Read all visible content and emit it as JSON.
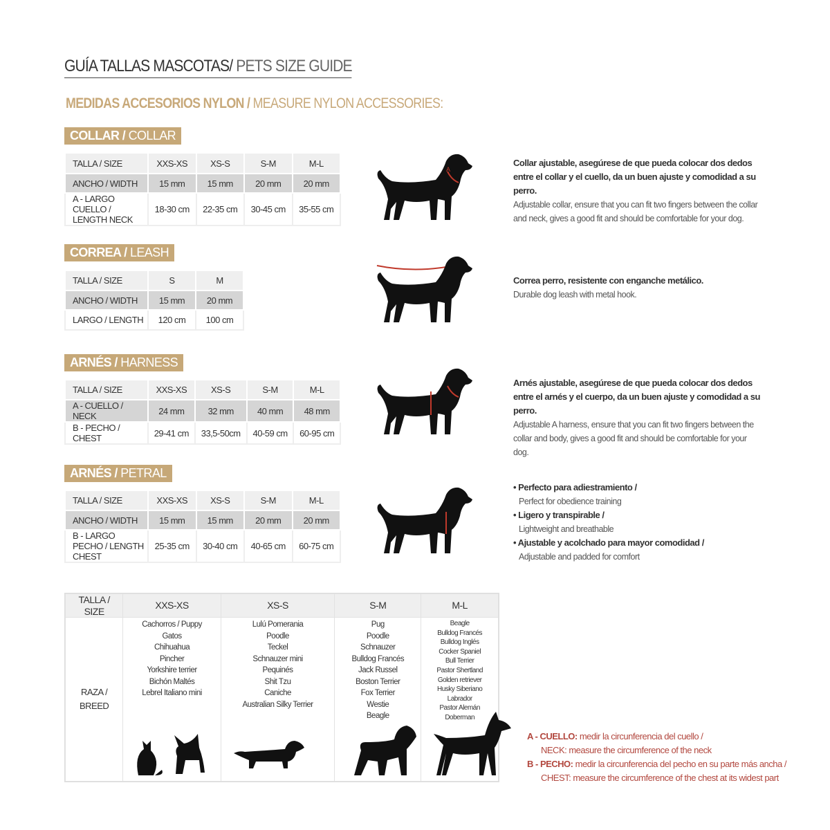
{
  "title": {
    "main": "GUÍA TALLAS MASCOTAS/",
    "sub": " PETS SIZE GUIDE"
  },
  "subtitle": {
    "main": "MEDIDAS ACCESORIOS NYLON /",
    "sub": " MEASURE NYLON ACCESSORIES:"
  },
  "colors": {
    "accent": "#c6a878",
    "red": "#b2473e",
    "dark": "#333333"
  },
  "collar": {
    "badge_es": "COLLAR /",
    "badge_en": " COLLAR",
    "rows": [
      [
        "TALLA / SIZE",
        "XXS-XS",
        "XS-S",
        "S-M",
        "M-L"
      ],
      [
        "ANCHO / WIDTH",
        "15 mm",
        "15 mm",
        "20 mm",
        "20 mm"
      ],
      [
        "A - LARGO CUELLO / LENGTH NECK",
        "18-30 cm",
        "22-35 cm",
        "30-45 cm",
        "35-55 cm"
      ]
    ],
    "desc_es": "Collar ajustable, asegúrese de que pueda colocar dos dedos entre el collar y el cuello, da un buen ajuste y comodidad a su perro.",
    "desc_en": "Adjustable collar, ensure that you can fit two fingers between the collar and neck, gives a good fit and should be comfortable for your dog."
  },
  "leash": {
    "badge_es": "CORREA /",
    "badge_en": " LEASH",
    "rows": [
      [
        "TALLA / SIZE",
        "S",
        "M"
      ],
      [
        "ANCHO / WIDTH",
        "15 mm",
        "20 mm"
      ],
      [
        "LARGO / LENGTH",
        "120 cm",
        "100 cm"
      ]
    ],
    "desc_es": "Correa perro, resistente con enganche metálico.",
    "desc_en": "Durable dog leash with metal hook."
  },
  "harness": {
    "badge_es": "ARNÉS /",
    "badge_en": " HARNESS",
    "rows": [
      [
        "TALLA / SIZE",
        "XXS-XS",
        "XS-S",
        "S-M",
        "M-L"
      ],
      [
        "A - CUELLO / NECK",
        "24 mm",
        "32 mm",
        "40 mm",
        "48 mm"
      ],
      [
        "B - PECHO / CHEST",
        "29-41 cm",
        "33,5-50cm",
        "40-59 cm",
        "60-95 cm"
      ]
    ],
    "desc_es": "Arnés ajustable, asegúrese de que pueda colocar dos dedos entre el arnés y el cuerpo, da un buen ajuste y comodidad a su perro.",
    "desc_en": "Adjustable A harness, ensure that you can fit two fingers between the collar and body, gives a good fit and should be comfortable for your dog."
  },
  "petral": {
    "badge_es": "ARNÉS /",
    "badge_en": " PETRAL",
    "rows": [
      [
        "TALLA / SIZE",
        "XXS-XS",
        "XS-S",
        "S-M",
        "M-L"
      ],
      [
        "ANCHO / WIDTH",
        "15 mm",
        "15 mm",
        "20 mm",
        "20 mm"
      ],
      [
        "B - LARGO PECHO / LENGTH CHEST",
        "25-35 cm",
        "30-40 cm",
        "40-65 cm",
        "60-75 cm"
      ]
    ],
    "bullets": [
      {
        "es": "• Perfecto para adiestramiento /",
        "en": "Perfect for obedience training"
      },
      {
        "es": "• Ligero y transpirable /",
        "en": "Lightweight and breathable"
      },
      {
        "es": "• Ajustable y acolchado para mayor comodidad /",
        "en": "Adjustable and padded for comfort"
      }
    ]
  },
  "breeds": {
    "size_label": "TALLA /  SIZE",
    "breed_label": "RAZA / BREED",
    "sizes": [
      "XXS-XS",
      "XS-S",
      "S-M",
      "M-L"
    ],
    "lists": [
      "Cachorros / Puppy\nGatos\nChihuahua\nPincher\nYorkshire terrier\nBichón Maltés\nLebrel Italiano mini",
      "Lulú Pomerania\nPoodle\nTeckel\nSchnauzer mini\nPequinés\nShit Tzu\nCaniche\nAustralian Silky Terrier",
      "Pug\nPoodle\nSchnauzer\nBulldog Francés\nJack Russel\nBoston Terrier\nFox Terrier\nWestie\nBeagle",
      "Beagle\nBulldog Francés\nBulldog Inglés\nCocker Spaniel\nBull Terrier\nPastor Shertland\nGolden retriever\nHusky Siberiano\nLabrador\nPastor Alemán\nDoberman"
    ]
  },
  "notes": {
    "a_es": "A - CUELLO:",
    "a_es2": " medir la circunferencia del cuello /",
    "a_en_b": "NECK:",
    "a_en": " measure the circumference of the neck",
    "b_es": "B - PECHO:",
    "b_es2": " medir la circunferencia del pecho en su parte más ancha /",
    "b_en_b": "CHEST:",
    "b_en": " measure the circumference of the chest at its widest part",
    "label_a": "A",
    "label_b": "B"
  }
}
